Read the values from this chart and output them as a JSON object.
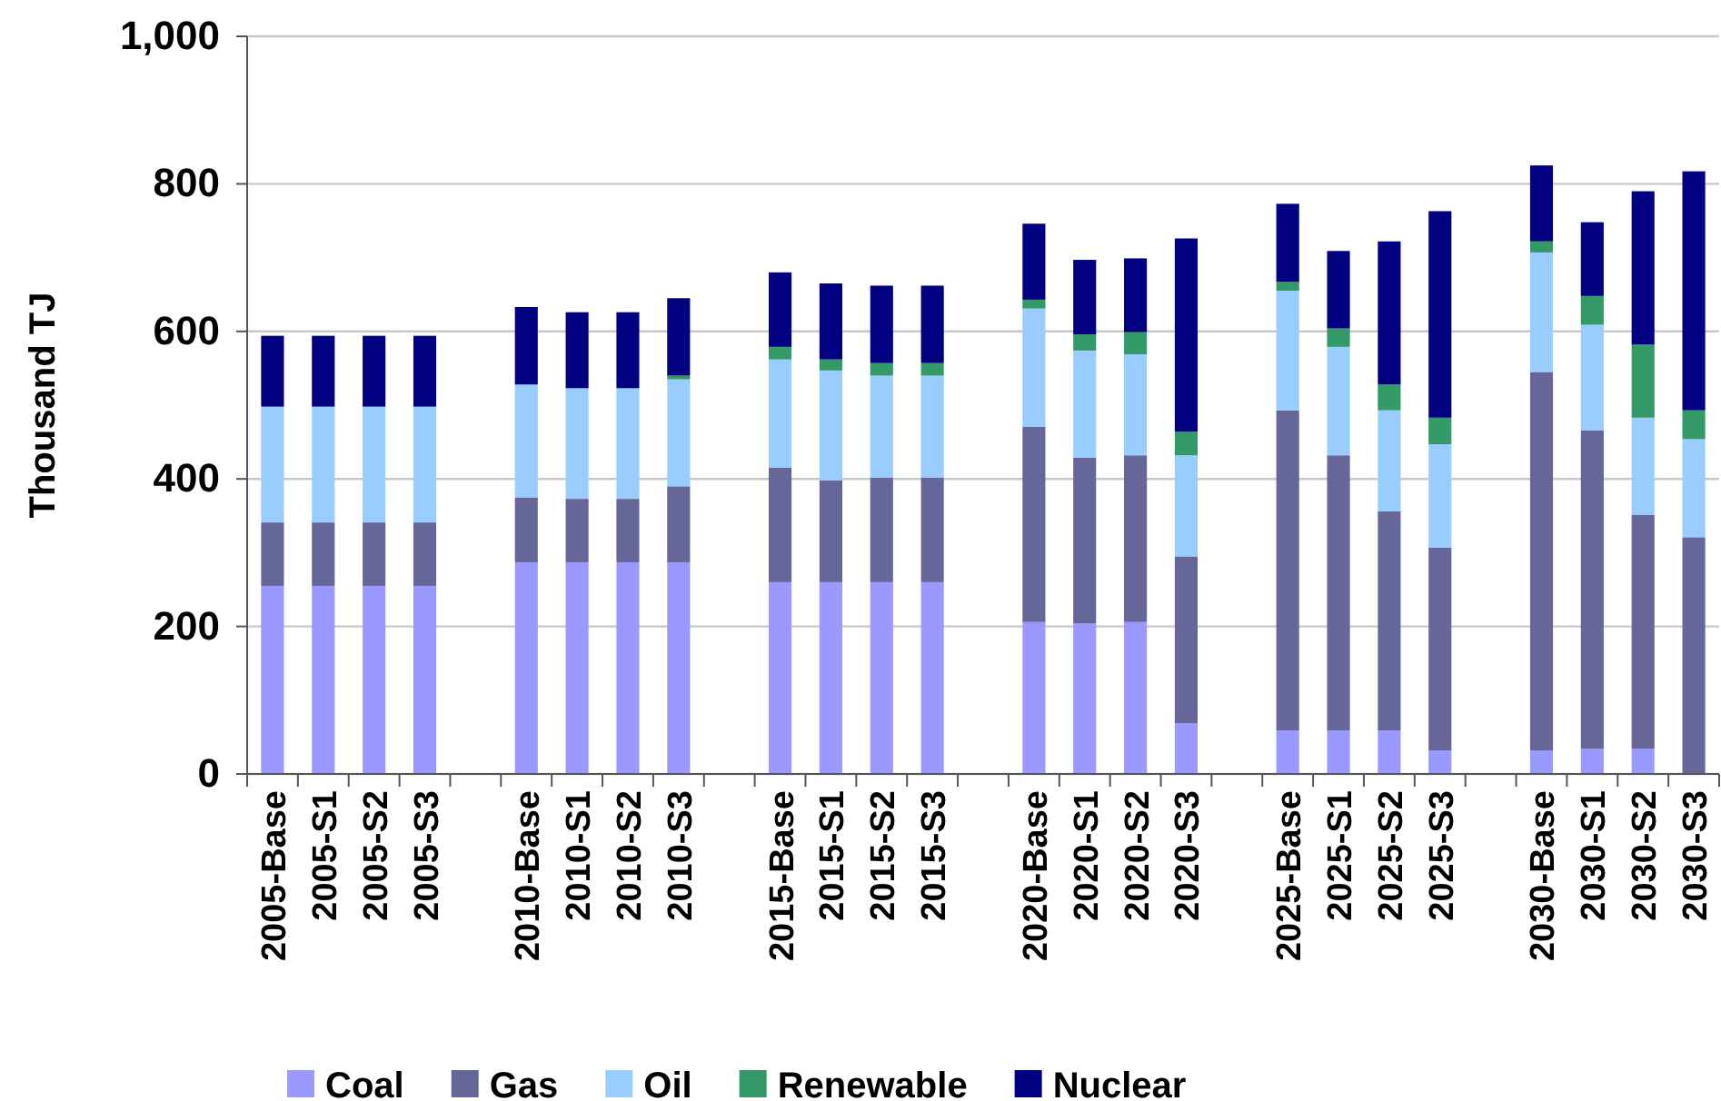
{
  "chart_data": {
    "type": "bar",
    "stacked": true,
    "ylabel": "Thousand TJ",
    "categories": [
      "2005-Base",
      "2005-S1",
      "2005-S2",
      "2005-S3",
      null,
      "2010-Base",
      "2010-S1",
      "2010-S2",
      "2010-S3",
      null,
      "2015-Base",
      "2015-S1",
      "2015-S2",
      "2015-S3",
      null,
      "2020-Base",
      "2020-S1",
      "2020-S2",
      "2020-S3",
      null,
      "2025-Base",
      "2025-S1",
      "2025-S2",
      "2025-S3",
      null,
      "2030-Base",
      "2030-S1",
      "2030-S2",
      "2030-S3"
    ],
    "series": [
      {
        "name": "Coal",
        "color": "#9999ff",
        "values": [
          255,
          255,
          255,
          255,
          null,
          287,
          287,
          287,
          287,
          null,
          260,
          260,
          260,
          260,
          null,
          206,
          204,
          206,
          69,
          null,
          59,
          59,
          59,
          32,
          null,
          32,
          34,
          34,
          0
        ]
      },
      {
        "name": "Gas",
        "color": "#666699",
        "values": [
          86,
          86,
          86,
          86,
          null,
          88,
          86,
          86,
          103,
          null,
          155,
          138,
          142,
          142,
          null,
          265,
          225,
          226,
          226,
          null,
          434,
          373,
          297,
          275,
          null,
          513,
          432,
          317,
          321
        ]
      },
      {
        "name": "Oil",
        "color": "#99ccff",
        "values": [
          157,
          157,
          157,
          157,
          null,
          153,
          150,
          150,
          145,
          null,
          147,
          149,
          138,
          138,
          null,
          160,
          145,
          137,
          137,
          null,
          162,
          147,
          137,
          140,
          null,
          162,
          143,
          132,
          133
        ]
      },
      {
        "name": "Renewable",
        "color": "#339966",
        "values": [
          0,
          0,
          0,
          0,
          null,
          0,
          0,
          0,
          5,
          null,
          17,
          15,
          17,
          17,
          null,
          12,
          22,
          30,
          32,
          null,
          12,
          25,
          35,
          36,
          null,
          15,
          39,
          99,
          39
        ]
      },
      {
        "name": "Nuclear",
        "color": "#000080",
        "values": [
          96,
          96,
          96,
          96,
          null,
          105,
          103,
          103,
          105,
          null,
          101,
          103,
          105,
          105,
          null,
          103,
          101,
          100,
          262,
          null,
          106,
          105,
          194,
          280,
          null,
          103,
          100,
          208,
          324
        ]
      }
    ],
    "ylim": [
      0,
      1000
    ],
    "yticks": [
      0,
      200,
      400,
      600,
      800,
      {
        "value": 1000,
        "label": "1,000"
      }
    ],
    "grid": "y",
    "legend": "bottom"
  }
}
